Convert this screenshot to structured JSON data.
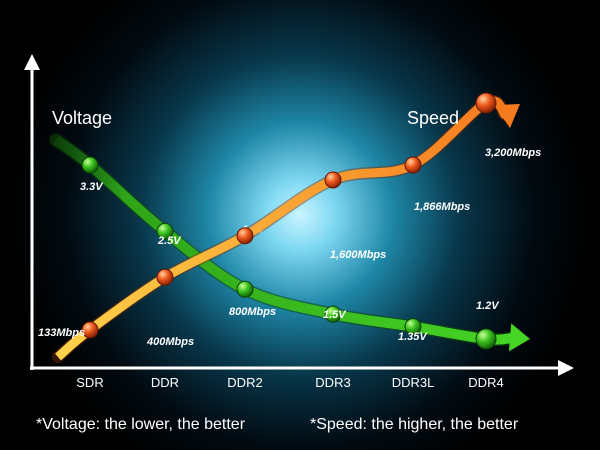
{
  "chart_data": {
    "type": "line",
    "categories": [
      "SDR",
      "DDR",
      "DDR2",
      "DDR3",
      "DDR3L",
      "DDR4"
    ],
    "series": [
      {
        "name": "Voltage",
        "color": "#3cc31f",
        "values": [
          3.3,
          2.5,
          1.8,
          1.5,
          1.35,
          1.2
        ],
        "labels": [
          "3.3V",
          "2.5V",
          "1.8V",
          "1.5V",
          "1.35V",
          "1.2V"
        ]
      },
      {
        "name": "Speed",
        "color": "#f5a623",
        "values": [
          133,
          400,
          800,
          1600,
          1866,
          3200
        ],
        "labels": [
          "133Mbps",
          "400Mbps",
          "800Mbps",
          "1,600Mbps",
          "1,866Mbps",
          "3,200Mbps"
        ]
      }
    ],
    "axis_color": "#ffffff",
    "grid": false,
    "legend": "labels at line ends"
  },
  "footnotes": {
    "voltage": "*Voltage:  the lower, the better",
    "speed": "*Speed: the higher, the better"
  }
}
